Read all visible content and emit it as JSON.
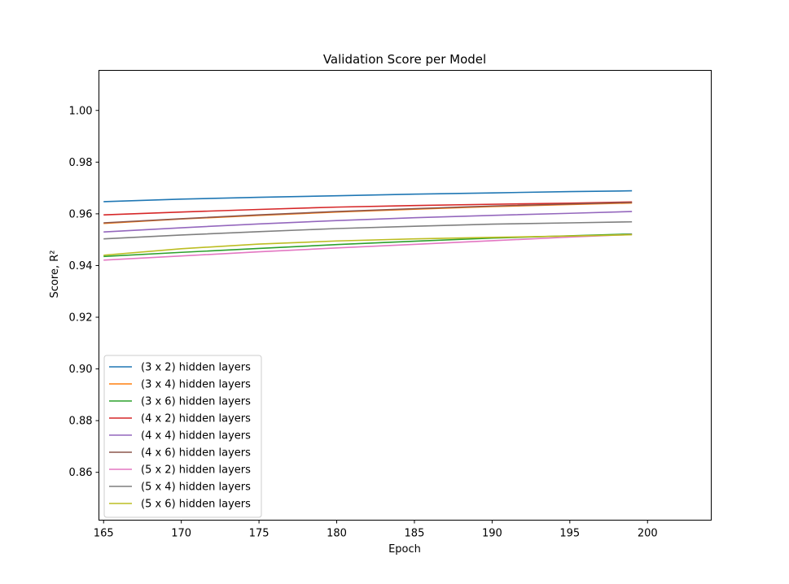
{
  "chart_data": {
    "type": "line",
    "title": "Validation Score per Model",
    "xlabel": "Epoch",
    "ylabel": "Score, R²",
    "xlim": [
      164.7,
      204.1
    ],
    "ylim": [
      0.8415,
      1.0155
    ],
    "xticks": [
      165,
      170,
      175,
      180,
      185,
      190,
      195,
      200
    ],
    "xtick_labels": [
      "165",
      "170",
      "175",
      "180",
      "185",
      "190",
      "195",
      "200"
    ],
    "yticks": [
      0.86,
      0.88,
      0.9,
      0.92,
      0.94,
      0.96,
      0.98,
      1.0
    ],
    "ytick_labels": [
      "0.86",
      "0.88",
      "0.90",
      "0.92",
      "0.94",
      "0.96",
      "0.98",
      "1.00"
    ],
    "grid": false,
    "legend_position": "lower-left",
    "x": [
      165,
      170,
      175,
      180,
      185,
      190,
      195,
      199
    ],
    "series": [
      {
        "name": "(3 x 2) hidden layers",
        "color": "#1f77b4",
        "values": [
          0.9647,
          0.9657,
          0.9664,
          0.967,
          0.9676,
          0.9681,
          0.9686,
          0.9689
        ]
      },
      {
        "name": "(3 x 4) hidden layers",
        "color": "#ff7f0e",
        "values": [
          0.9563,
          0.958,
          0.9594,
          0.9607,
          0.9618,
          0.9628,
          0.9636,
          0.9642
        ]
      },
      {
        "name": "(3 x 6) hidden layers",
        "color": "#2ca02c",
        "values": [
          0.9435,
          0.9451,
          0.9466,
          0.9481,
          0.9494,
          0.9506,
          0.9515,
          0.9522
        ]
      },
      {
        "name": "(4 x 2) hidden layers",
        "color": "#d62728",
        "values": [
          0.9596,
          0.9607,
          0.9617,
          0.9626,
          0.9632,
          0.9637,
          0.9641,
          0.9646
        ]
      },
      {
        "name": "(4 x 4) hidden layers",
        "color": "#9467bd",
        "values": [
          0.953,
          0.9546,
          0.9561,
          0.9574,
          0.9585,
          0.9594,
          0.9602,
          0.9609
        ]
      },
      {
        "name": "(4 x 6) hidden layers",
        "color": "#8c564b",
        "values": [
          0.9565,
          0.9581,
          0.9596,
          0.9609,
          0.962,
          0.963,
          0.9638,
          0.9644
        ]
      },
      {
        "name": "(5 x 2) hidden layers",
        "color": "#e377c2",
        "values": [
          0.9421,
          0.9437,
          0.9453,
          0.9468,
          0.9482,
          0.9496,
          0.951,
          0.952
        ]
      },
      {
        "name": "(5 x 4) hidden layers",
        "color": "#7f7f7f",
        "values": [
          0.9503,
          0.9518,
          0.9531,
          0.9543,
          0.9552,
          0.956,
          0.9565,
          0.9569
        ]
      },
      {
        "name": "(5 x 6) hidden layers",
        "color": "#bcbd22",
        "values": [
          0.944,
          0.9465,
          0.9483,
          0.9495,
          0.9503,
          0.9509,
          0.9514,
          0.9519
        ]
      }
    ]
  }
}
